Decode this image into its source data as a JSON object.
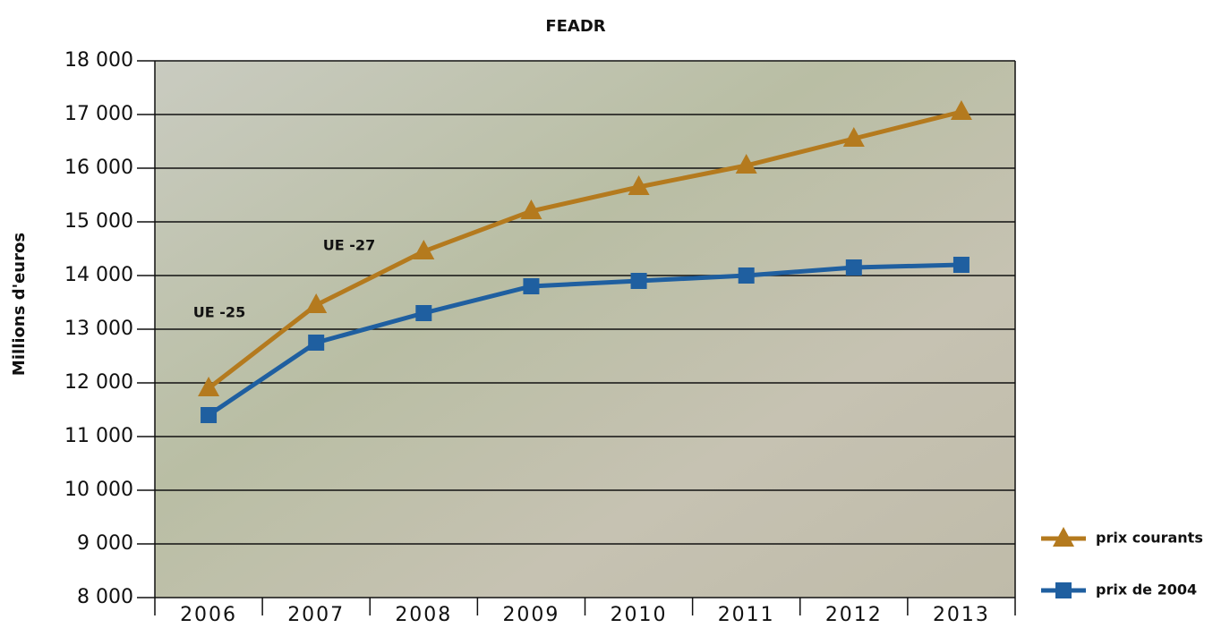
{
  "chart_data": {
    "type": "line",
    "title": "FEADR",
    "y_label": "Millions d'euros",
    "categories": [
      "2006",
      "2007",
      "2008",
      "2009",
      "2010",
      "2011",
      "2012",
      "2013"
    ],
    "series": [
      {
        "name": "prix courants",
        "color": "#b47a1e",
        "marker": "triangle",
        "values": [
          11900,
          13450,
          14450,
          15200,
          15650,
          16050,
          16550,
          17050
        ]
      },
      {
        "name": "prix de 2004",
        "color": "#1f5fa0",
        "marker": "square",
        "values": [
          11400,
          12750,
          13300,
          13800,
          13900,
          14000,
          14150,
          14200
        ]
      }
    ],
    "annotations": [
      "UE -25",
      "UE -27"
    ],
    "ylim": [
      8000,
      18000
    ],
    "yticks": [
      {
        "value": 8000,
        "label": "8 000"
      },
      {
        "value": 9000,
        "label": "9 000"
      },
      {
        "value": 10000,
        "label": "10 000"
      },
      {
        "value": 11000,
        "label": "11 000"
      },
      {
        "value": 12000,
        "label": "12 000"
      },
      {
        "value": 13000,
        "label": "13 000"
      },
      {
        "value": 14000,
        "label": "14 000"
      },
      {
        "value": 15000,
        "label": "15 000"
      },
      {
        "value": 16000,
        "label": "16 000"
      },
      {
        "value": 17000,
        "label": "17 000"
      },
      {
        "value": 18000,
        "label": "18 000"
      }
    ],
    "grid": true
  }
}
